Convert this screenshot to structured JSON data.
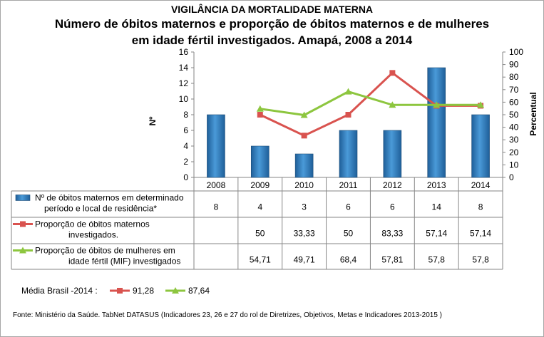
{
  "header": {
    "supertitle": "VIGILÂNCIA DA MORTALIDADE MATERNA",
    "title_line1": "Número de óbitos maternos e proporção de óbitos maternos e de mulheres",
    "title_line2": "em idade fértil investigados. Amapá, 2008 a 2014"
  },
  "chart_data": {
    "type": "bar+line",
    "categories": [
      "2008",
      "2009",
      "2010",
      "2011",
      "2012",
      "2013",
      "2014"
    ],
    "y_left": {
      "label": "Nº",
      "ylim": [
        0,
        16
      ],
      "ticks": [
        "0",
        "2",
        "4",
        "6",
        "8",
        "10",
        "12",
        "14",
        "16"
      ]
    },
    "y_right": {
      "label": "Percentual",
      "ylim": [
        0,
        100
      ],
      "ticks": [
        "0",
        "10",
        "20",
        "30",
        "40",
        "50",
        "60",
        "70",
        "80",
        "90",
        "100"
      ]
    },
    "series": [
      {
        "name": "Nº de óbitos maternos em determinado período e local de residência*",
        "legend_lines": [
          "Nº de óbitos maternos em determinado",
          "período e local de residência*"
        ],
        "type": "bar",
        "axis": "left",
        "values": [
          8,
          4,
          3,
          6,
          6,
          14,
          8
        ],
        "labels": [
          "8",
          "4",
          "3",
          "6",
          "6",
          "14",
          "8"
        ],
        "color": "#2e75b6"
      },
      {
        "name": "Proporção de óbitos maternos investigados.",
        "legend_lines": [
          "Proporção de óbitos maternos",
          "investigados."
        ],
        "type": "line",
        "axis": "right",
        "values": [
          null,
          50,
          33.33,
          50,
          83.33,
          57.14,
          57.14
        ],
        "labels": [
          "",
          "50",
          "33,33",
          "50",
          "83,33",
          "57,14",
          "57,14"
        ],
        "color": "#d9534f",
        "marker": "square"
      },
      {
        "name": "Proporção de óbitos de mulheres em idade fértil (MIF) investigados",
        "legend_lines": [
          "Proporção de óbitos de mulheres em",
          "idade fértil (MIF) investigados"
        ],
        "type": "line",
        "axis": "right",
        "values": [
          null,
          54.71,
          49.71,
          68.4,
          57.81,
          57.8,
          57.8
        ],
        "labels": [
          "",
          "54,71",
          "49,71",
          "68,4",
          "57,81",
          "57,8",
          "57,8"
        ],
        "color": "#8dc63f",
        "marker": "triangle"
      }
    ]
  },
  "media_brasil": {
    "label": "Média Brasil -2014 :",
    "items": [
      {
        "value": "91,28",
        "color": "#d9534f",
        "marker": "square"
      },
      {
        "value": "87,64",
        "color": "#8dc63f",
        "marker": "triangle"
      }
    ]
  },
  "footer": {
    "source": "Fonte: Ministério da Saúde. TabNet DATASUS (Indicadores 23, 26 e 27  do rol de Diretrizes, Objetivos, Metas e Indicadores 2013-2015 )"
  }
}
